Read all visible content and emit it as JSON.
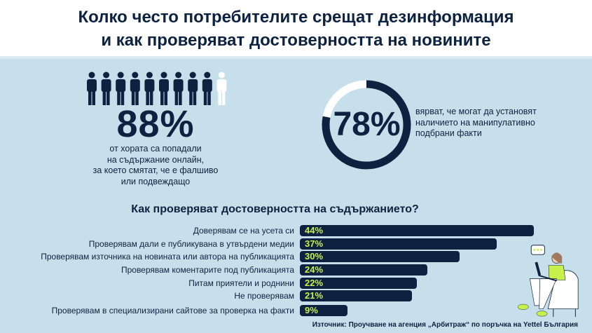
{
  "title": {
    "line1": "Колко често потребителите срещат дезинформация",
    "line2": "и как проверяват достоверността на новините"
  },
  "stat1": {
    "value": "88%",
    "people_total": 10,
    "people_filled": 9,
    "text": [
      "от хората са попадали",
      "на съдържание онлайн,",
      "за което смятат, че е фалшиво",
      "или подвеждащо"
    ]
  },
  "stat2": {
    "value": "78%",
    "percent": 78,
    "text": [
      "вярват, че могат да установят",
      "наличието на манипулативно",
      "подбрани факти"
    ]
  },
  "colors": {
    "navy": "#0d2240",
    "lime": "#c8f04a",
    "background": "#c6dfea",
    "white": "#ffffff"
  },
  "chart_data": {
    "type": "bar",
    "orientation": "horizontal",
    "title": "Как проверяват достоверността на съдържанието?",
    "categories": [
      "Доверявам се на усета си",
      "Проверявам дали е публикувана в утвърдени медии",
      "Проверявам източника на новината или автора на публикацията",
      "Проверявам коментарите под публикацията",
      "Питам приятели и роднини",
      "Не проверявам",
      "Проверявам в специализирани сайтове за проверка на факти"
    ],
    "values": [
      44,
      37,
      30,
      24,
      22,
      21,
      9
    ],
    "labels": [
      "44%",
      "37%",
      "30%",
      "24%",
      "22%",
      "21%",
      "9%"
    ],
    "unit": "%"
  },
  "source": "Източник: Проучване на агенция „Арбитраж“ по поръчка на Yettel България"
}
